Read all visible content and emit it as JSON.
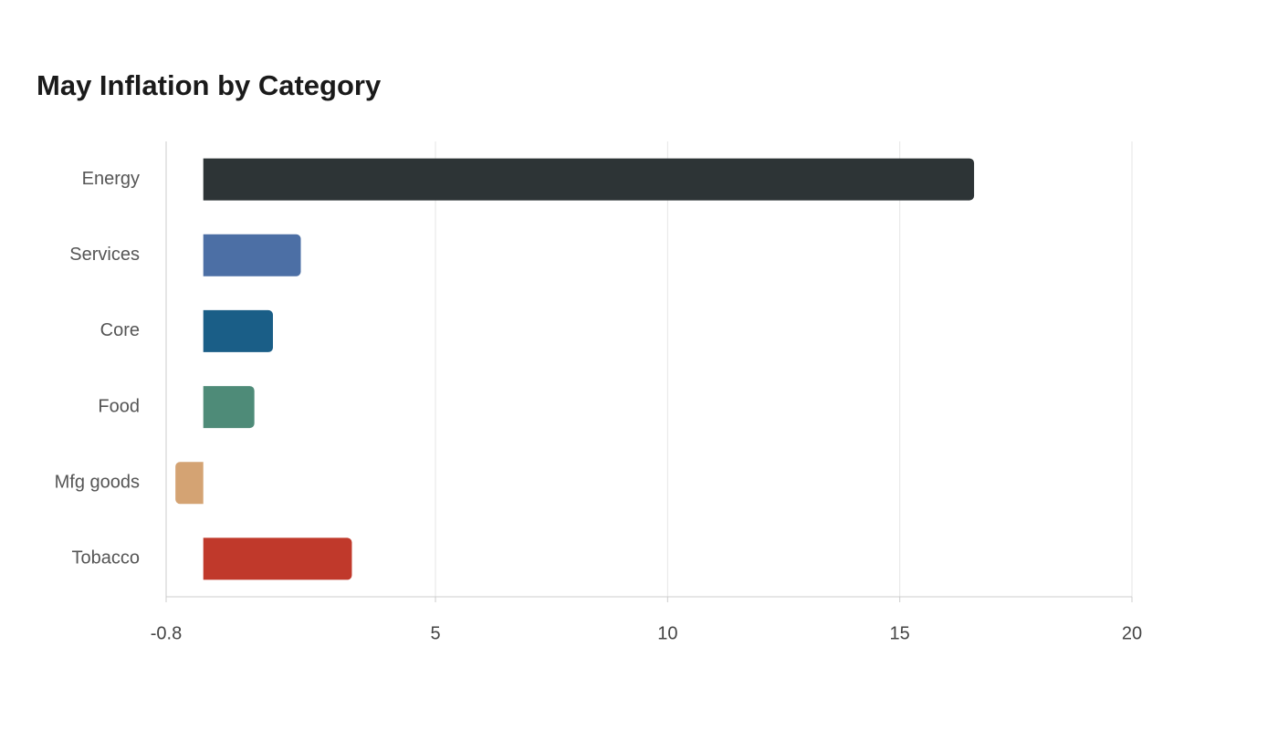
{
  "chart_data": {
    "type": "barh",
    "title": "May Inflation by Category",
    "categories": [
      "Energy",
      "Services",
      "Core",
      "Food",
      "Mfg goods",
      "Tobacco"
    ],
    "values": [
      16.6,
      2.1,
      1.5,
      1.1,
      -0.6,
      3.2
    ],
    "colors": [
      "#2d3436",
      "#4c6fa5",
      "#1a5e87",
      "#4e8b78",
      "#d4a373",
      "#c0392b"
    ],
    "xlim": [
      -0.8,
      20
    ],
    "xticks": [
      -0.8,
      5,
      10,
      15,
      20
    ],
    "grid": true
  }
}
